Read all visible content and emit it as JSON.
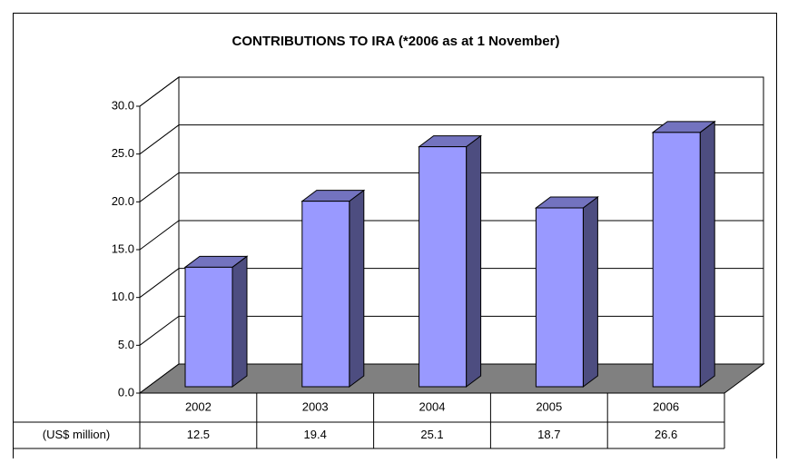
{
  "chart_data": {
    "type": "bar3d",
    "title": "CONTRIBUTIONS TO IRA (*2006 as at 1 November)",
    "categories": [
      "2002",
      "2003",
      "2004",
      "2005",
      "2006"
    ],
    "series": [
      {
        "name": "(US$ million)",
        "color": "#9999ff",
        "values": [
          12.5,
          19.4,
          25.1,
          18.7,
          26.6
        ]
      }
    ],
    "ylim": [
      0,
      30
    ],
    "yticks": [
      {
        "value": 0,
        "label": "0.0"
      },
      {
        "value": 5,
        "label": "5.0"
      },
      {
        "value": 10,
        "label": "10.0"
      },
      {
        "value": 15,
        "label": "15.0"
      },
      {
        "value": 20,
        "label": "20.0"
      },
      {
        "value": 25,
        "label": "25.0"
      },
      {
        "value": 30,
        "label": "30.0"
      }
    ],
    "grid": true,
    "data_table": true
  }
}
